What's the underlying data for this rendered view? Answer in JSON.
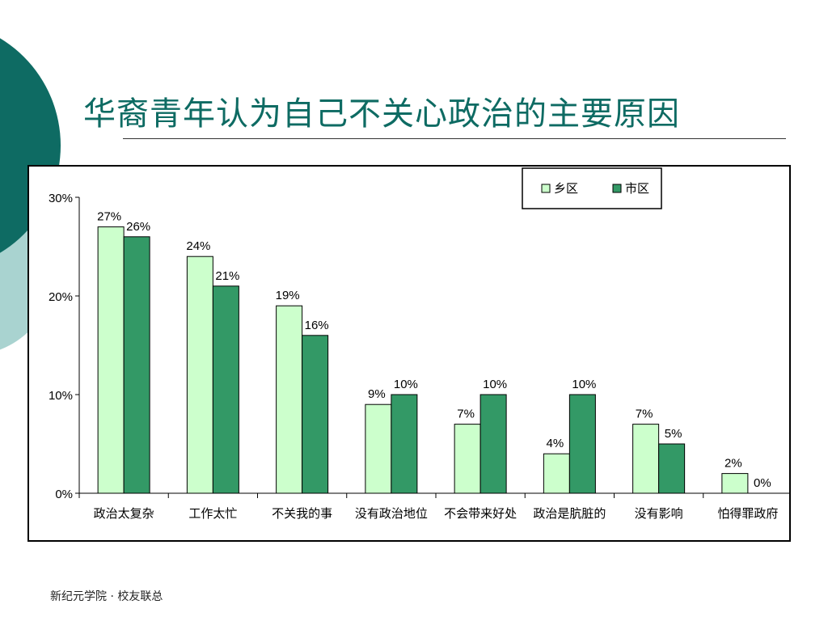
{
  "slide": {
    "title": "华裔青年认为自己不关心政治的主要原因",
    "footer": "新纪元学院 · 校友联总",
    "colors": {
      "accent_dark": "#0e6b63",
      "accent_light": "#a9d3d0"
    }
  },
  "chart_data": {
    "type": "bar",
    "title": "",
    "xlabel": "",
    "ylabel": "",
    "categories": [
      "政治太复杂",
      "工作太忙",
      "不关我的事",
      "没有政治地位",
      "不会带来好处",
      "政治是肮脏的",
      "没有影响",
      "怕得罪政府"
    ],
    "series": [
      {
        "name": "乡区",
        "values": [
          27,
          24,
          19,
          9,
          7,
          4,
          7,
          2
        ],
        "color": "#ccffcc"
      },
      {
        "name": "市区",
        "values": [
          26,
          21,
          16,
          10,
          10,
          10,
          5,
          0
        ],
        "color": "#339966"
      }
    ],
    "ylim": [
      0,
      30
    ],
    "yticks": [
      0,
      10,
      20,
      30
    ],
    "ytick_labels": [
      "0%",
      "10%",
      "20%",
      "30%"
    ],
    "value_suffix": "%",
    "grid": false,
    "legend_position": "top-right"
  }
}
